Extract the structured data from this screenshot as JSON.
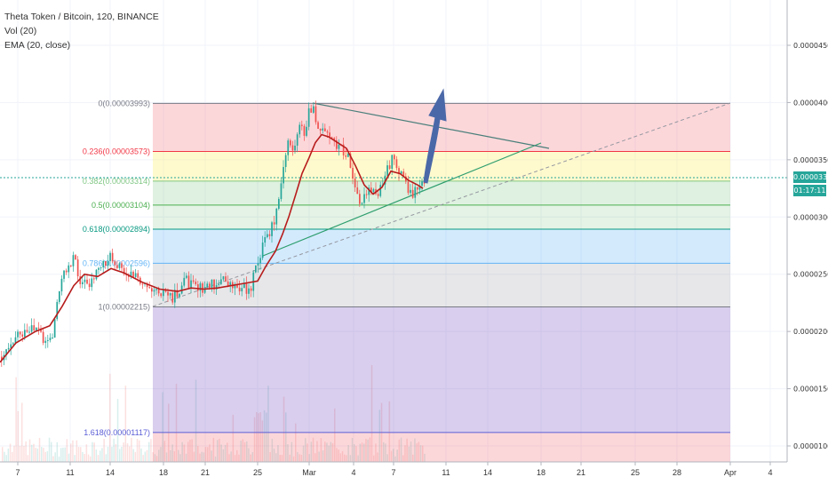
{
  "legend": {
    "symbol": "Theta Token / Bitcoin, 120, BINANCE",
    "volume": "Vol (20)",
    "ema": "EMA (20, close)"
  },
  "colors": {
    "up": "#26a69a",
    "down": "#ef5350",
    "ema": "#b71c1c",
    "trendline": "#2e9e6e",
    "arrow": "#4a68a8"
  },
  "price_axis": {
    "ticks": [
      "0.00004500",
      "0.00004000",
      "0.00003500",
      "0.00003000",
      "0.00002500",
      "0.00002000",
      "0.00001500",
      "0.00001000"
    ],
    "current_price": "0.00003346",
    "countdown": "01:17:11"
  },
  "time_axis": {
    "ticks": [
      "7",
      "11",
      "14",
      "18",
      "21",
      "25",
      "Mar",
      "4",
      "7",
      "11",
      "14",
      "18",
      "21",
      "25",
      "28",
      "Apr",
      "4"
    ]
  },
  "chart_data": {
    "type": "candlestick",
    "fib_levels": [
      {
        "ratio": "0",
        "price": 3.993e-05,
        "label": "0(0.00003993)",
        "color": "#787b86"
      },
      {
        "ratio": "0.236",
        "price": 3.573e-05,
        "label": "0.236(0.00003573)",
        "color": "#f23645"
      },
      {
        "ratio": "0.382",
        "price": 3.314e-05,
        "label": "0.382(0.00003314)",
        "color": "#81c784"
      },
      {
        "ratio": "0.5",
        "price": 3.104e-05,
        "label": "0.5(0.00003104)",
        "color": "#4caf50"
      },
      {
        "ratio": "0.618",
        "price": 2.894e-05,
        "label": "0.618(0.00002894)",
        "color": "#089981"
      },
      {
        "ratio": "0.786",
        "price": 2.596e-05,
        "label": "0.786(0.00002596)",
        "color": "#64b5f6"
      },
      {
        "ratio": "1",
        "price": 2.215e-05,
        "label": "1(0.00002215)",
        "color": "#787b86"
      },
      {
        "ratio": "1.618",
        "price": 1.117e-05,
        "label": "1.618(0.00001117)",
        "color": "#5b5ed6"
      }
    ],
    "fib_zones": [
      {
        "from": 3.993e-05,
        "to": 3.573e-05,
        "color": "rgba(242,54,69,0.20)"
      },
      {
        "from": 3.573e-05,
        "to": 3.314e-05,
        "color": "rgba(255,235,59,0.25)"
      },
      {
        "from": 3.314e-05,
        "to": 3.104e-05,
        "color": "rgba(129,199,132,0.25)"
      },
      {
        "from": 3.104e-05,
        "to": 2.894e-05,
        "color": "rgba(76,175,80,0.15)"
      },
      {
        "from": 2.894e-05,
        "to": 2.596e-05,
        "color": "rgba(33,150,243,0.20)"
      },
      {
        "from": 2.596e-05,
        "to": 2.215e-05,
        "color": "rgba(120,123,134,0.18)"
      },
      {
        "from": 2.215e-05,
        "to": 1.117e-05,
        "color": "rgba(103,58,183,0.25)"
      },
      {
        "from": 1.117e-05,
        "to": 8.5e-06,
        "color": "rgba(242,54,69,0.20)"
      }
    ],
    "ema_series": {
      "x": [
        0,
        18,
        40,
        56,
        70,
        83,
        95,
        110,
        125,
        140,
        160,
        180,
        200,
        215,
        230,
        245,
        260,
        275,
        290,
        300,
        310,
        318,
        325,
        333,
        340,
        348,
        355,
        362,
        370,
        380,
        390,
        400,
        410,
        420,
        430,
        440,
        450,
        460,
        470,
        476
      ],
      "price": [
        1.73e-05,
        1.9e-05,
        2e-05,
        2.05e-05,
        2.22e-05,
        2.4e-05,
        2.5e-05,
        2.48e-05,
        2.55e-05,
        2.51e-05,
        2.43e-05,
        2.37e-05,
        2.35e-05,
        2.38e-05,
        2.37e-05,
        2.38e-05,
        2.4e-05,
        2.42e-05,
        2.44e-05,
        2.58e-05,
        2.7e-05,
        2.85e-05,
        3e-05,
        3.2e-05,
        3.38e-05,
        3.52e-05,
        3.65e-05,
        3.72e-05,
        3.7e-05,
        3.65e-05,
        3.6e-05,
        3.45e-05,
        3.28e-05,
        3.2e-05,
        3.26e-05,
        3.4e-05,
        3.38e-05,
        3.32e-05,
        3.28e-05,
        3.25e-05
      ]
    },
    "price_series": {
      "x": [
        0,
        10,
        20,
        30,
        40,
        50,
        58,
        66,
        74,
        82,
        90,
        100,
        112,
        124,
        136,
        150,
        165,
        180,
        195,
        210,
        220,
        235,
        250,
        265,
        280,
        290,
        296,
        302,
        310,
        318,
        324,
        330,
        336,
        342,
        348,
        354,
        360,
        368,
        376,
        384,
        392,
        400,
        408,
        416,
        424,
        432,
        440,
        448,
        456,
        462,
        468,
        474,
        480
      ],
      "price": [
        1.78e-05,
        1.9e-05,
        2e-05,
        1.96e-05,
        2.05e-05,
        1.92e-05,
        1.95e-05,
        2.4e-05,
        2.55e-05,
        2.65e-05,
        2.43e-05,
        2.42e-05,
        2.58e-05,
        2.65e-05,
        2.55e-05,
        2.48e-05,
        2.42e-05,
        2.36e-05,
        2.3e-05,
        2.45e-05,
        2.36e-05,
        2.4e-05,
        2.45e-05,
        2.4e-05,
        2.36e-05,
        2.62e-05,
        2.78e-05,
        2.85e-05,
        3e-05,
        3.4e-05,
        3.7e-05,
        3.55e-05,
        3.85e-05,
        3.68e-05,
        3.99e-05,
        3.88e-05,
        3.75e-05,
        3.7e-05,
        3.65e-05,
        3.6e-05,
        3.5e-05,
        3.18e-05,
        3.15e-05,
        3.23e-05,
        3.18e-05,
        3.38e-05,
        3.5e-05,
        3.42e-05,
        3.3e-05,
        3.2e-05,
        3.25e-05,
        3.32e-05,
        3.34e-05
      ]
    }
  }
}
